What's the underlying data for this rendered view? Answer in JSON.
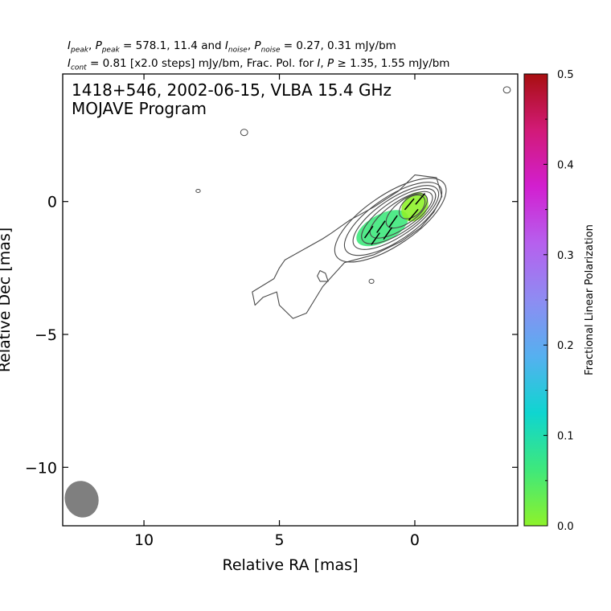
{
  "header": {
    "peak_values": "578.1, 11.4",
    "noise_values": "0.27, 0.31 mJy/bm",
    "cont_text": "= 0.81 [x2.0 steps] mJy/bm, Frac. Pol. for",
    "threshold_text": "1.35, 1.55 mJy/bm"
  },
  "chart_data": {
    "type": "contour",
    "title_line1": "1418+546, 2002-06-15, VLBA 15.4 GHz",
    "title_line2": "MOJAVE Program",
    "xlabel": "Relative RA [mas]",
    "ylabel": "Relative Dec [mas]",
    "xlim": [
      13.0,
      -3.8
    ],
    "ylim": [
      -12.2,
      4.8
    ],
    "x_ticks": [
      10,
      5,
      0
    ],
    "x_tick_labels": [
      "10",
      "5",
      "0"
    ],
    "y_ticks": [
      0,
      -5,
      -10
    ],
    "y_tick_labels": [
      "0",
      "−5",
      "−10"
    ],
    "colorbar": {
      "label": "Fractional Linear Polarization",
      "range": [
        0.0,
        0.5
      ],
      "ticks": [
        0.0,
        0.1,
        0.2,
        0.3,
        0.4,
        0.5
      ],
      "tick_labels": [
        "0.0",
        "0.1",
        "0.2",
        "0.3",
        "0.4",
        "0.5"
      ],
      "colors": [
        "#8ef22a",
        "#3ee87c",
        "#0fd5d0",
        "#55b0f0",
        "#8e8cf2",
        "#b660ee",
        "#d21fd0",
        "#d21a78",
        "#a80f10"
      ]
    },
    "beam": {
      "x": 12.3,
      "y": -11.2,
      "major_mas": 1.45,
      "minor_mas": 1.15,
      "pa_deg": -20
    },
    "intensity_contours": [
      {
        "level": 1,
        "shape": "jet",
        "points": [
          [
            0.6,
            0.4
          ],
          [
            0.0,
            1.0
          ],
          [
            -0.8,
            0.9
          ],
          [
            -1.0,
            0.2
          ],
          [
            -0.7,
            -0.4
          ],
          [
            -0.2,
            -1.0
          ],
          [
            0.5,
            -1.5
          ],
          [
            1.5,
            -2.0
          ],
          [
            2.6,
            -2.3
          ],
          [
            3.4,
            -3.2
          ],
          [
            4.0,
            -4.2
          ],
          [
            4.5,
            -4.4
          ],
          [
            5.0,
            -3.9
          ],
          [
            5.1,
            -3.4
          ],
          [
            5.6,
            -3.6
          ],
          [
            5.9,
            -3.9
          ],
          [
            6.0,
            -3.4
          ],
          [
            5.2,
            -2.9
          ],
          [
            5.0,
            -2.5
          ],
          [
            4.8,
            -2.2
          ],
          [
            3.4,
            -1.4
          ],
          [
            3.1,
            -1.2
          ],
          [
            2.4,
            -0.7
          ],
          [
            1.5,
            -0.2
          ]
        ]
      },
      {
        "level": 1,
        "shape": "blob",
        "points": [
          [
            3.3,
            -2.7
          ],
          [
            3.5,
            -2.6
          ],
          [
            3.6,
            -2.8
          ],
          [
            3.5,
            -3.0
          ],
          [
            3.2,
            -3.0
          ]
        ]
      },
      {
        "level": 2,
        "shape": "ellipse",
        "cx": 0.9,
        "cy": -0.7,
        "rx": 2.4,
        "ry": 0.95,
        "angle": -34
      },
      {
        "level": 3,
        "shape": "ellipse",
        "cx": 0.8,
        "cy": -0.65,
        "rx": 2.1,
        "ry": 0.82,
        "angle": -34
      },
      {
        "level": 4,
        "shape": "ellipse",
        "cx": 0.7,
        "cy": -0.6,
        "rx": 1.85,
        "ry": 0.7,
        "angle": -34
      },
      {
        "level": 5,
        "shape": "ellipse",
        "cx": 0.6,
        "cy": -0.55,
        "rx": 1.6,
        "ry": 0.6,
        "angle": -34
      },
      {
        "level": 6,
        "shape": "ellipse",
        "cx": 0.5,
        "cy": -0.5,
        "rx": 1.35,
        "ry": 0.5,
        "angle": -34
      },
      {
        "level": 7,
        "shape": "ellipse",
        "cx": 0.3,
        "cy": -0.35,
        "rx": 0.9,
        "ry": 0.42,
        "angle": -37
      },
      {
        "level": 8,
        "shape": "ellipse",
        "cx": 0.1,
        "cy": -0.2,
        "rx": 0.55,
        "ry": 0.35,
        "angle": -40
      }
    ],
    "noise_islands": [
      {
        "x": 6.3,
        "y": 2.6,
        "rx": 0.13,
        "ry": 0.12
      },
      {
        "x": 8.0,
        "y": 0.4,
        "rx": 0.08,
        "ry": 0.06
      },
      {
        "x": -3.4,
        "y": 4.2,
        "rx": 0.13,
        "ry": 0.12
      },
      {
        "x": 1.6,
        "y": -3.0,
        "rx": 0.09,
        "ry": 0.08
      }
    ],
    "polarization_regions": [
      {
        "cx": 1.2,
        "cy": -1.0,
        "rx": 1.05,
        "ry": 0.52,
        "angle": -28,
        "frac_pol": 0.06
      },
      {
        "cx": 0.0,
        "cy": -0.2,
        "rx": 0.58,
        "ry": 0.46,
        "angle": -55,
        "frac_pol": 0.02
      }
    ],
    "evpa_vectors": [
      {
        "x": 1.7,
        "y": -1.15,
        "angle": 55
      },
      {
        "x": 1.25,
        "y": -0.95,
        "angle": 55
      },
      {
        "x": 0.8,
        "y": -0.75,
        "angle": 55
      },
      {
        "x": 1.45,
        "y": -1.4,
        "angle": 55
      },
      {
        "x": 1.0,
        "y": -1.2,
        "angle": 55
      },
      {
        "x": 0.2,
        "y": -0.1,
        "angle": 50
      },
      {
        "x": -0.2,
        "y": 0.1,
        "angle": 50
      },
      {
        "x": 0.05,
        "y": -0.5,
        "angle": 50
      }
    ]
  }
}
